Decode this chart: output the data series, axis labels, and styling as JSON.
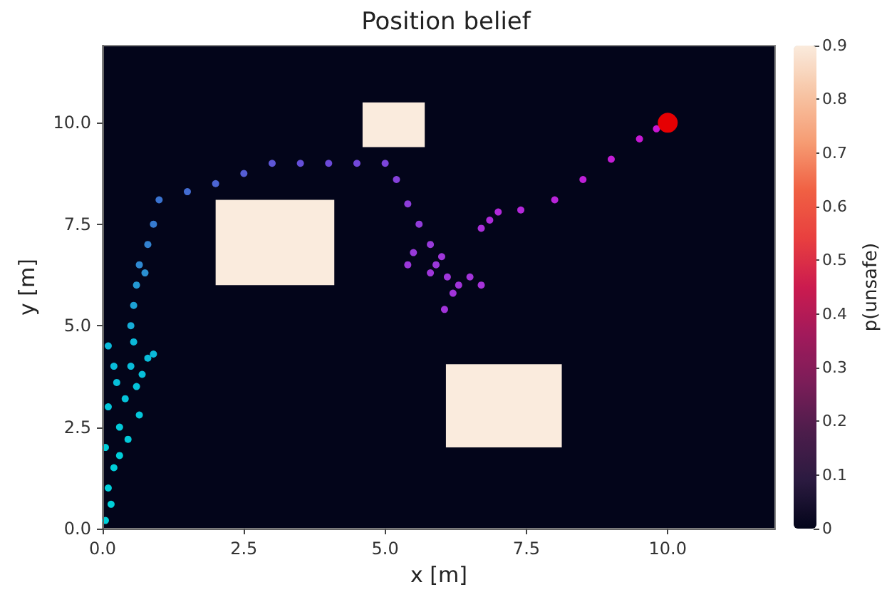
{
  "chart_data": {
    "type": "scatter",
    "title": "Position belief",
    "xlabel": "x [m]",
    "ylabel": "y [m]",
    "clabel": "p(unsafe)",
    "xlim": [
      0,
      11.9
    ],
    "ylim": [
      0,
      11.9
    ],
    "xticks": [
      {
        "value": 0,
        "label": "0.0"
      },
      2.5,
      {
        "value": 5,
        "label": "5.0"
      },
      7.5,
      {
        "value": 10,
        "label": "10.0"
      }
    ],
    "yticks": [
      {
        "value": 0,
        "label": "0.0"
      },
      2.5,
      {
        "value": 5,
        "label": "5.0"
      },
      7.5,
      {
        "value": 10,
        "label": "10.0"
      }
    ],
    "clim": [
      0,
      0.9
    ],
    "cticks": [
      0,
      0.1,
      0.2,
      0.3,
      0.4,
      0.5,
      0.6,
      0.7,
      0.8,
      0.9
    ],
    "marker": "circle",
    "series": [
      {
        "type": "bar",
        "x": [
          3.05,
          5.15,
          7.1
        ],
        "base": [
          6.0,
          9.4,
          2.0
        ],
        "values": [
          2.1,
          1.1,
          2.05
        ],
        "color": "#faebdd"
      },
      {
        "x": [
          0.05,
          0.15,
          0.1,
          0.3,
          0.2,
          0.05,
          0.45,
          0.3,
          0.1,
          0.65,
          0.4,
          0.6,
          0.25,
          0.7,
          0.2,
          0.5,
          0.8,
          0.1,
          0.9,
          0.55,
          0.5,
          0.55,
          0.6,
          0.75,
          0.65,
          0.8,
          0.9,
          1.0,
          1.5,
          2.0,
          2.5,
          3.0,
          3.5,
          4.0,
          4.5,
          5.0,
          5.2,
          5.4,
          5.6,
          5.8,
          5.5,
          5.9,
          6.1,
          6.3,
          6.5,
          5.8,
          6.2,
          6.05,
          6.7,
          6.0,
          5.4,
          6.7,
          6.85,
          7.0,
          7.4,
          8.0,
          8.5,
          9.0,
          9.5,
          9.8
        ],
        "values": [
          0.2,
          0.6,
          1.0,
          1.8,
          1.5,
          2.0,
          2.2,
          2.5,
          3.0,
          2.8,
          3.2,
          3.5,
          3.6,
          3.8,
          4.0,
          4.0,
          4.2,
          4.5,
          4.3,
          4.6,
          5.0,
          5.5,
          6.0,
          6.3,
          6.5,
          7.0,
          7.5,
          8.1,
          8.3,
          8.5,
          8.75,
          9.0,
          9.0,
          9.0,
          9.0,
          9.0,
          8.6,
          8.0,
          7.5,
          7.0,
          6.8,
          6.5,
          6.2,
          6.0,
          6.2,
          6.3,
          5.8,
          5.4,
          6.0,
          6.7,
          6.5,
          7.4,
          7.6,
          7.8,
          7.85,
          8.1,
          8.6,
          9.1,
          9.6,
          9.85
        ],
        "colors": [
          "#00e8ee",
          "#00e8ee",
          "#00e6ee",
          "#00e4ee",
          "#00e4ee",
          "#00e4ee",
          "#02e0ee",
          "#02e0ee",
          "#04dcee",
          "#04dcee",
          "#06d8ee",
          "#06d8ee",
          "#08d4ee",
          "#08d4ee",
          "#0ad0ee",
          "#0ad0ee",
          "#0ad0ee",
          "#0ccdee",
          "#0ccdee",
          "#0ccdee",
          "#18c0ec",
          "#20b4ea",
          "#28aae8",
          "#30a0e6",
          "#3498e6",
          "#3890e4",
          "#3c88e4",
          "#4080e4",
          "#4a78e6",
          "#5470e8",
          "#5e68ea",
          "#6860ec",
          "#7058ee",
          "#7852ee",
          "#8050f0",
          "#8a4cf0",
          "#9448f0",
          "#9c44f0",
          "#a242f0",
          "#a840f0",
          "#a840f0",
          "#ac3ef0",
          "#b03cf0",
          "#b23af0",
          "#b43af0",
          "#b03cf0",
          "#b43af0",
          "#b43af0",
          "#b838f0",
          "#b03cf0",
          "#ac3ef0",
          "#bc34f0",
          "#c030f0",
          "#c42ef0",
          "#c82cf0",
          "#cc28ee",
          "#d224ec",
          "#d820ea",
          "#dc1ce8",
          "#e01ae8"
        ]
      },
      {
        "x": [
          10
        ],
        "values": [
          10
        ],
        "color": "#ff0000",
        "sizes": [
          1
        ]
      }
    ]
  }
}
